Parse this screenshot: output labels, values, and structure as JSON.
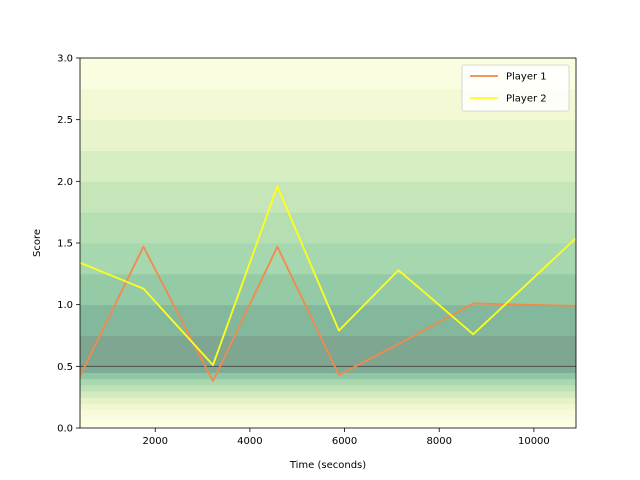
{
  "chart_data": {
    "type": "line",
    "title": "",
    "xlabel": "Time (seconds)",
    "ylabel": "Score",
    "xlim": [
      410,
      10890
    ],
    "ylim": [
      0,
      3.0
    ],
    "xticks": [
      2000,
      4000,
      6000,
      8000,
      10000
    ],
    "yticks": [
      0.0,
      0.5,
      1.0,
      1.5,
      2.0,
      2.5,
      3.0
    ],
    "xtick_labels": [
      "2000",
      "4000",
      "6000",
      "8000",
      "10000"
    ],
    "ytick_labels": [
      "0.0",
      "0.5",
      "1.0",
      "1.5",
      "2.0",
      "2.5",
      "3.0"
    ],
    "grid": false,
    "legend_position": "top-right",
    "reference_line": {
      "y": 0.5,
      "color": "#444444"
    },
    "background_gradient": {
      "colormap": "YlGn-like",
      "peak_y": 0.5,
      "low_color": "#ffffe5",
      "high_color": "#7a9c8a"
    },
    "series": [
      {
        "name": "Player 1",
        "color": "#f28a4b",
        "x": [
          410,
          1750,
          3220,
          4580,
          5880,
          7140,
          8720,
          10890
        ],
        "y": [
          0.42,
          1.47,
          0.38,
          1.47,
          0.43,
          0.68,
          1.01,
          0.99
        ]
      },
      {
        "name": "Player 2",
        "color": "#ffff1a",
        "x": [
          410,
          1750,
          3220,
          4580,
          5880,
          7140,
          8720,
          10890
        ],
        "y": [
          1.34,
          1.13,
          0.51,
          1.96,
          0.79,
          1.28,
          0.76,
          1.54
        ]
      }
    ]
  }
}
